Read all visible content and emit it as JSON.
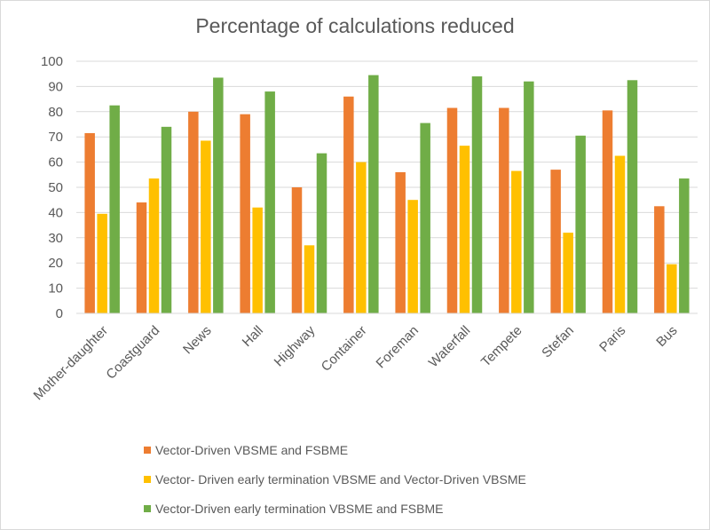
{
  "chart_data": {
    "type": "bar",
    "title": "Percentage of calculations reduced",
    "xlabel": "",
    "ylabel": "",
    "ylim": [
      0,
      100
    ],
    "yticks": [
      0,
      10,
      20,
      30,
      40,
      50,
      60,
      70,
      80,
      90,
      100
    ],
    "grid": true,
    "legend_position": "bottom",
    "categories": [
      "Mother-daughter",
      "Coastguard",
      "News",
      "Hall",
      "Highway",
      "Container",
      "Foreman",
      "Waterfall",
      "Tempete",
      "Stefan",
      "Paris",
      "Bus"
    ],
    "series": [
      {
        "name": "Vector-Driven VBSME and FSBME",
        "color": "#ED7D31",
        "values": [
          71.5,
          44,
          80,
          79,
          50,
          86,
          56,
          81.5,
          81.5,
          57,
          80.5,
          42.5
        ]
      },
      {
        "name": "Vector- Driven early termination VBSME and Vector-Driven VBSME",
        "color": "#FFC000",
        "values": [
          39.5,
          53.5,
          68.5,
          42,
          27,
          60,
          45,
          66.5,
          56.5,
          32,
          62.5,
          19.5
        ]
      },
      {
        "name": "Vector-Driven early termination VBSME and FSBME",
        "color": "#70AD47",
        "values": [
          82.5,
          74,
          93.5,
          88,
          63.5,
          94.5,
          75.5,
          94,
          92,
          70.5,
          92.5,
          53.5
        ]
      }
    ]
  }
}
